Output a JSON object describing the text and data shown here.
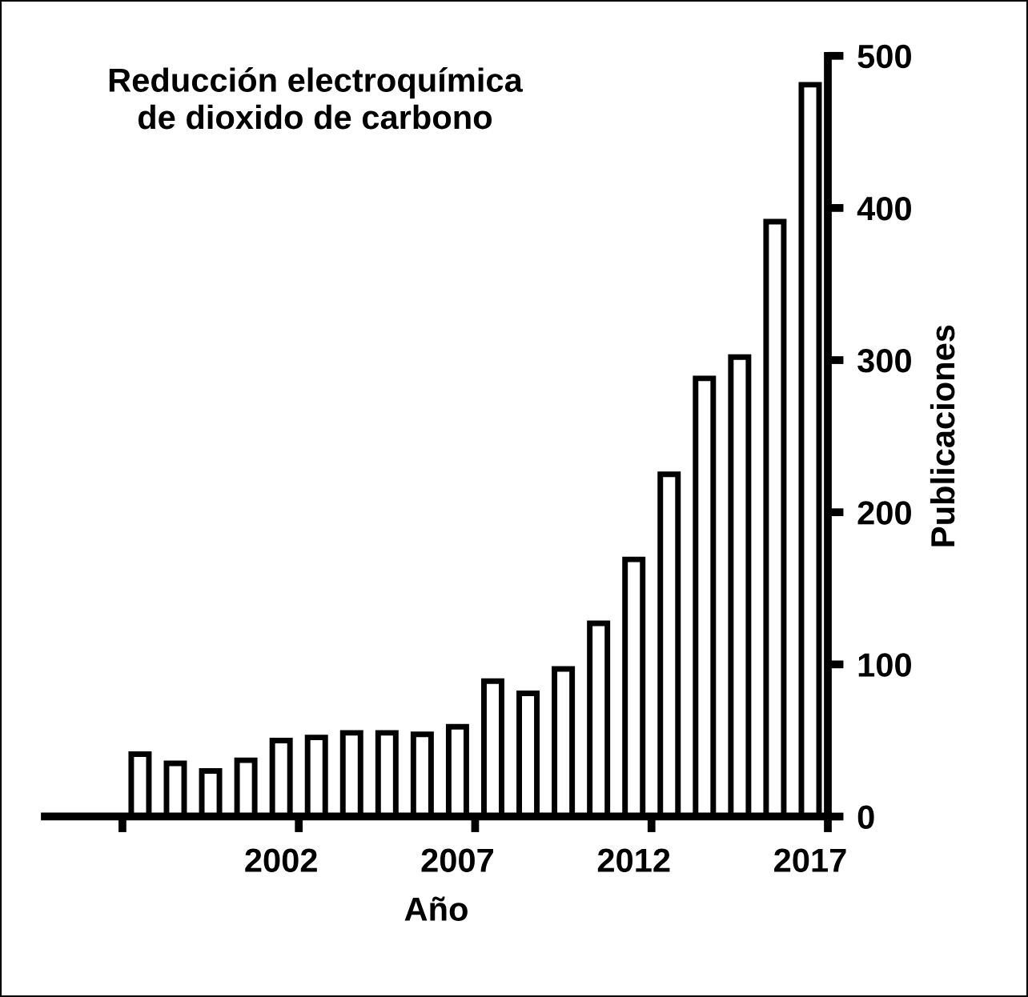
{
  "chart_data": {
    "type": "bar",
    "title": "Reducción electroquímica\nde dioxido de carbono",
    "xlabel": "Año",
    "ylabel": "Publicaciones",
    "x": [
      1998,
      1999,
      2000,
      2001,
      2002,
      2003,
      2004,
      2005,
      2006,
      2007,
      2008,
      2009,
      2010,
      2011,
      2012,
      2013,
      2014,
      2015,
      2016,
      2017
    ],
    "series": [
      {
        "color": "#ffffff",
        "values": [
          41,
          35,
          30,
          37,
          50,
          52,
          55,
          55,
          54,
          59,
          89,
          81,
          97,
          127,
          169,
          225,
          288,
          302,
          391,
          481
        ]
      }
    ],
    "xlim": [
      1995.3,
      2017.5
    ],
    "xticks": [
      {
        "value": 1997.5,
        "label": null
      },
      {
        "value": 2002,
        "label": "2002"
      },
      {
        "value": 2002.5,
        "label": null
      },
      {
        "value": 2007,
        "label": "2007"
      },
      {
        "value": 2007.5,
        "label": null
      },
      {
        "value": 2012,
        "label": "2012"
      },
      {
        "value": 2012.5,
        "label": null
      },
      {
        "value": 2017,
        "label": "2017"
      },
      {
        "value": 2017.5,
        "label": null
      }
    ],
    "ylim": [
      0,
      500
    ],
    "yticks": [
      0,
      100,
      200,
      300,
      400,
      500
    ],
    "grid": false,
    "legend": false
  }
}
